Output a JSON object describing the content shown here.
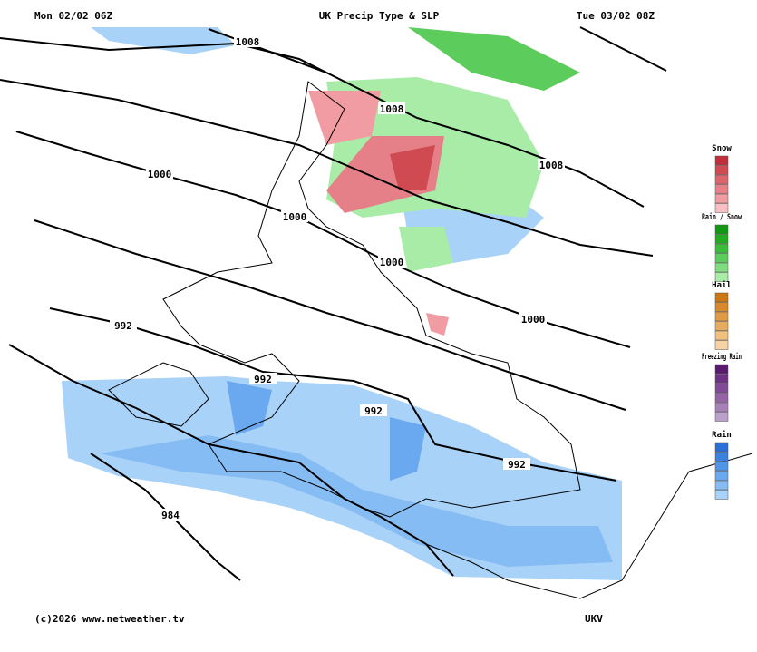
{
  "header": {
    "left": "Mon 02/02 06Z",
    "title": "UK Precip Type & SLP",
    "right": "Tue 03/02 08Z"
  },
  "isobar_labels": [
    "1008",
    "1008",
    "1008",
    "1000",
    "1000",
    "1000",
    "1000",
    "992",
    "992",
    "992",
    "992",
    "984"
  ],
  "legend": [
    {
      "title": "Snow",
      "colors": [
        "#c0303a",
        "#d04a52",
        "#dc646c",
        "#e68088",
        "#f09ca2",
        "#f8c0c4"
      ]
    },
    {
      "title": "Rain / Snow",
      "colors": [
        "#119911",
        "#22aa22",
        "#3cbc3c",
        "#5ccc5c",
        "#80dc80",
        "#a8eca8"
      ]
    },
    {
      "title": "Hail",
      "colors": [
        "#cc7711",
        "#d88a2a",
        "#e09a44",
        "#e8ac60",
        "#f0c080",
        "#f6d2a4"
      ]
    },
    {
      "title": "Freezing Rain",
      "colors": [
        "#5a1a6e",
        "#6e3282",
        "#804a94",
        "#9464a6",
        "#a880b8",
        "#bca0cc"
      ]
    },
    {
      "title": "Rain",
      "colors": [
        "#2a6ed8",
        "#3c80e0",
        "#5294e8",
        "#6aa8f0",
        "#86bcf4",
        "#a8d2f8"
      ]
    }
  ],
  "footer": {
    "left": "(c)2026 www.netweather.tv",
    "right": "UKV"
  }
}
